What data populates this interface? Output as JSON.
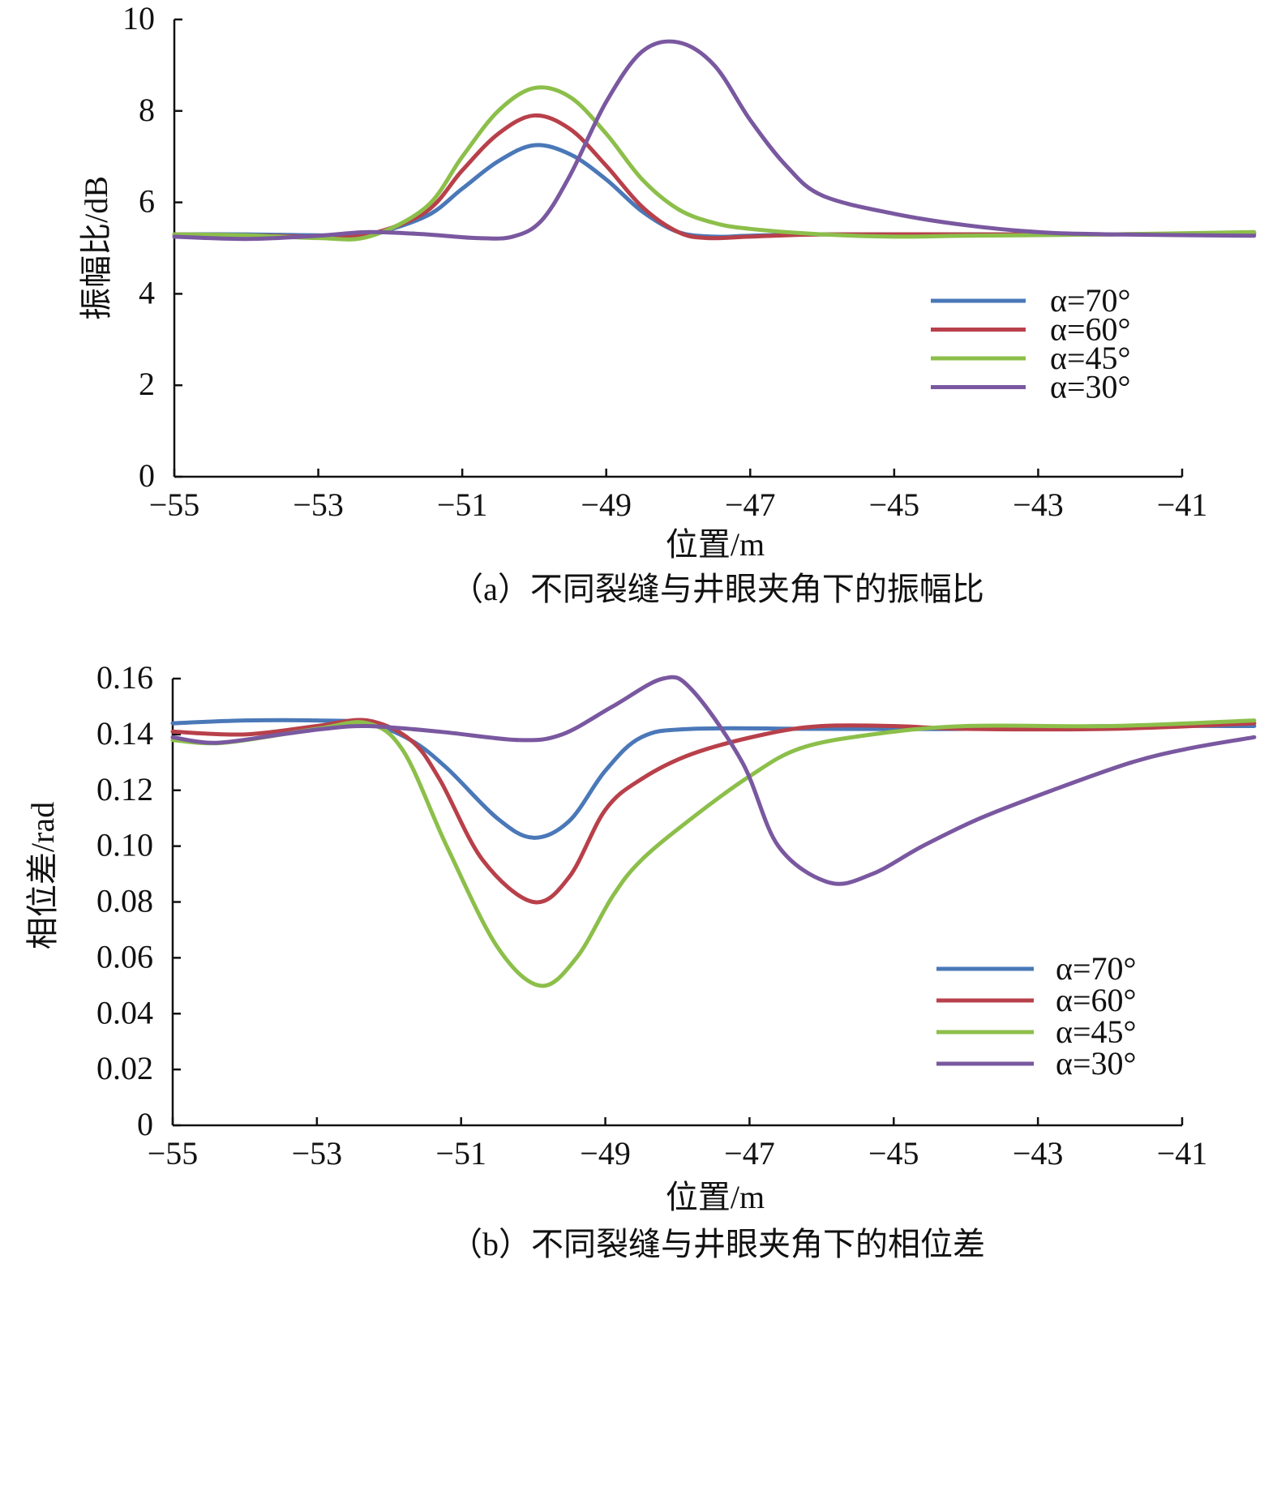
{
  "chart_data": [
    {
      "type": "line",
      "title": "",
      "caption": "（a）不同裂缝与井眼夹角下的振幅比",
      "xlabel": "位置/m",
      "ylabel": "振幅比/dB",
      "xlim": [
        -55,
        -40
      ],
      "ylim": [
        0,
        10
      ],
      "xticks": [
        -55,
        -53,
        -51,
        -49,
        -47,
        -45,
        -43,
        -41
      ],
      "xtick_labels": [
        "−55",
        "−53",
        "−51",
        "−49",
        "−47",
        "−45",
        "−43",
        "−41"
      ],
      "yticks": [
        0,
        2,
        4,
        6,
        8,
        10
      ],
      "ytick_labels": [
        "0",
        "2",
        "4",
        "6",
        "8",
        "10"
      ],
      "grid": false,
      "legend_position": "right",
      "series": [
        {
          "name": "α=70°",
          "color": "#4a78b8",
          "x": [
            -55,
            -54,
            -53,
            -52.3,
            -51.5,
            -51,
            -50.5,
            -50,
            -49.5,
            -49,
            -48.5,
            -48,
            -47.5,
            -47,
            -46,
            -44,
            -42,
            -40
          ],
          "y": [
            5.3,
            5.3,
            5.28,
            5.3,
            5.7,
            6.3,
            6.9,
            7.25,
            7.05,
            6.5,
            5.8,
            5.35,
            5.25,
            5.27,
            5.3,
            5.3,
            5.3,
            5.32
          ]
        },
        {
          "name": "α=60°",
          "color": "#b8404a",
          "x": [
            -55,
            -54,
            -53,
            -52.3,
            -51.5,
            -51,
            -50.5,
            -50,
            -49.5,
            -49,
            -48.5,
            -48,
            -47.6,
            -47,
            -46,
            -44,
            -42,
            -40
          ],
          "y": [
            5.3,
            5.28,
            5.25,
            5.3,
            5.8,
            6.7,
            7.5,
            7.9,
            7.6,
            6.8,
            5.9,
            5.35,
            5.22,
            5.25,
            5.3,
            5.3,
            5.3,
            5.33
          ]
        },
        {
          "name": "α=45°",
          "color": "#8cbf4a",
          "x": [
            -55,
            -54,
            -53,
            -52.3,
            -51.5,
            -51,
            -50.5,
            -50,
            -49.5,
            -49,
            -48.5,
            -48,
            -47.5,
            -47,
            -46,
            -45,
            -44,
            -42,
            -40
          ],
          "y": [
            5.3,
            5.28,
            5.22,
            5.25,
            5.9,
            7.0,
            8.0,
            8.5,
            8.3,
            7.5,
            6.5,
            5.85,
            5.55,
            5.42,
            5.3,
            5.25,
            5.27,
            5.3,
            5.35
          ]
        },
        {
          "name": "α=30°",
          "color": "#7a58a0",
          "x": [
            -55,
            -54,
            -53,
            -52.3,
            -51.5,
            -50.8,
            -50.3,
            -49.9,
            -49.5,
            -49,
            -48.5,
            -48,
            -47.5,
            -47,
            -46.5,
            -46,
            -45,
            -44,
            -43,
            -42,
            -40
          ],
          "y": [
            5.25,
            5.2,
            5.27,
            5.35,
            5.3,
            5.22,
            5.25,
            5.6,
            6.6,
            8.2,
            9.3,
            9.5,
            9.0,
            7.8,
            6.8,
            6.15,
            5.75,
            5.5,
            5.35,
            5.3,
            5.27
          ]
        }
      ]
    },
    {
      "type": "line",
      "title": "",
      "caption": "（b）不同裂缝与井眼夹角下的相位差",
      "xlabel": "位置/m",
      "ylabel": "相位差/rad",
      "xlim": [
        -55,
        -40
      ],
      "ylim": [
        0,
        0.16
      ],
      "xticks": [
        -55,
        -53,
        -51,
        -49,
        -47,
        -45,
        -43,
        -41
      ],
      "xtick_labels": [
        "−55",
        "−53",
        "−51",
        "−49",
        "−47",
        "−45",
        "−43",
        "−41"
      ],
      "yticks": [
        0,
        0.02,
        0.04,
        0.06,
        0.08,
        0.1,
        0.12,
        0.14,
        0.16
      ],
      "ytick_labels": [
        "0",
        "0.02",
        "0.04",
        "0.06",
        "0.08",
        "0.10",
        "0.12",
        "0.14",
        "0.16"
      ],
      "grid": false,
      "legend_position": "lower-right",
      "series": [
        {
          "name": "α=70°",
          "color": "#4a78b8",
          "x": [
            -55,
            -54,
            -53,
            -52.3,
            -51.7,
            -51.2,
            -50.5,
            -50,
            -49.5,
            -49,
            -48.5,
            -47.8,
            -46,
            -44,
            -42,
            -40
          ],
          "y": [
            0.144,
            0.145,
            0.145,
            0.144,
            0.138,
            0.128,
            0.11,
            0.103,
            0.109,
            0.127,
            0.139,
            0.142,
            0.142,
            0.142,
            0.143,
            0.143
          ]
        },
        {
          "name": "α=60°",
          "color": "#b8404a",
          "x": [
            -55,
            -54,
            -53,
            -52.3,
            -51.7,
            -51.3,
            -50.7,
            -50,
            -49.5,
            -49,
            -48.5,
            -47.8,
            -46.8,
            -46,
            -45,
            -44,
            -42,
            -40
          ],
          "y": [
            0.141,
            0.14,
            0.143,
            0.145,
            0.138,
            0.124,
            0.095,
            0.08,
            0.089,
            0.113,
            0.124,
            0.133,
            0.14,
            0.143,
            0.143,
            0.142,
            0.142,
            0.144
          ]
        },
        {
          "name": "α=45°",
          "color": "#8cbf4a",
          "x": [
            -55,
            -54.3,
            -53,
            -52.3,
            -51.8,
            -51.2,
            -50.5,
            -49.9,
            -49.4,
            -48.9,
            -48.5,
            -47.8,
            -47,
            -46.3,
            -45.3,
            -44,
            -42,
            -40
          ],
          "y": [
            0.138,
            0.137,
            0.142,
            0.144,
            0.134,
            0.1,
            0.064,
            0.05,
            0.06,
            0.082,
            0.095,
            0.11,
            0.125,
            0.135,
            0.14,
            0.143,
            0.143,
            0.145
          ]
        },
        {
          "name": "α=30°",
          "color": "#7a58a0",
          "x": [
            -55,
            -54.4,
            -53.5,
            -52.9,
            -52.3,
            -51.3,
            -50.2,
            -49.6,
            -48.9,
            -48.2,
            -47.8,
            -47.1,
            -46.6,
            -45.9,
            -45.3,
            -44.6,
            -43.8,
            -42.8,
            -41.7,
            -40.9,
            -40
          ],
          "y": [
            0.139,
            0.137,
            0.14,
            0.142,
            0.143,
            0.141,
            0.138,
            0.14,
            0.15,
            0.16,
            0.156,
            0.13,
            0.1,
            0.087,
            0.09,
            0.1,
            0.11,
            0.12,
            0.13,
            0.135,
            0.139
          ]
        }
      ]
    }
  ]
}
